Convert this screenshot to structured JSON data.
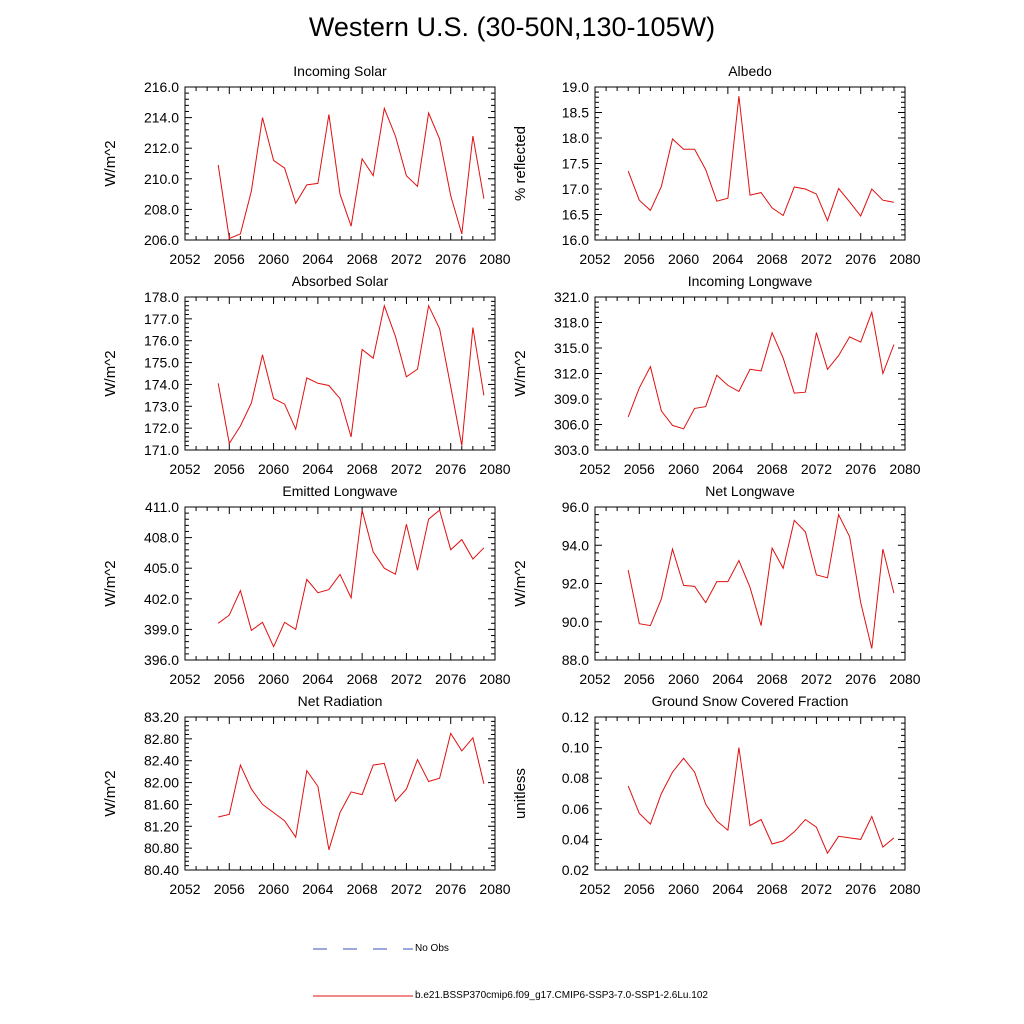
{
  "title": "Western U.S. (30-50N,130-105W)",
  "legend": {
    "entries": [
      {
        "label": "No Obs",
        "color": "#3a4fb8",
        "dashed": true
      },
      {
        "label": "b.e21.BSSP370cmip6.f09_g17.CMIP6-SSP3-7.0-SSP1-2.6Lu.102",
        "color": "#e01010",
        "dashed": false
      }
    ]
  },
  "line_color": "#e01010",
  "chart_data": [
    {
      "type": "line",
      "title": "Incoming Solar",
      "xlabel": "",
      "ylabel": "W/m^2",
      "xlim": [
        2052,
        2080
      ],
      "ylim": [
        206,
        216
      ],
      "grid": false,
      "xticks": [
        "2052",
        "2056",
        "2060",
        "2064",
        "2068",
        "2072",
        "2076",
        "2080"
      ],
      "yticks": [
        "206.0",
        "208.0",
        "210.0",
        "212.0",
        "214.0",
        "216.0"
      ],
      "x": [
        2055,
        2056,
        2057,
        2058,
        2059,
        2060,
        2061,
        2062,
        2063,
        2064,
        2065,
        2066,
        2067,
        2068,
        2069,
        2070,
        2071,
        2072,
        2073,
        2074,
        2075,
        2076,
        2077,
        2078,
        2079
      ],
      "values": [
        210.9,
        206.1,
        206.4,
        209.2,
        214.0,
        211.2,
        210.7,
        208.4,
        209.6,
        209.7,
        214.2,
        209.0,
        206.9,
        211.3,
        210.2,
        214.6,
        212.8,
        210.2,
        209.5,
        214.3,
        212.6,
        208.9,
        206.4,
        212.8,
        208.7
      ]
    },
    {
      "type": "line",
      "title": "Albedo",
      "xlabel": "",
      "ylabel": "% reflected",
      "xlim": [
        2052,
        2080
      ],
      "ylim": [
        16.0,
        19.0
      ],
      "grid": false,
      "xticks": [
        "2052",
        "2056",
        "2060",
        "2064",
        "2068",
        "2072",
        "2076",
        "2080"
      ],
      "yticks": [
        "16.0",
        "16.5",
        "17.0",
        "17.5",
        "18.0",
        "18.5",
        "19.0"
      ],
      "x": [
        2055,
        2056,
        2057,
        2058,
        2059,
        2060,
        2061,
        2062,
        2063,
        2064,
        2065,
        2066,
        2067,
        2068,
        2069,
        2070,
        2071,
        2072,
        2073,
        2074,
        2075,
        2076,
        2077,
        2078,
        2079
      ],
      "values": [
        17.35,
        16.78,
        16.58,
        17.05,
        17.98,
        17.78,
        17.78,
        17.38,
        16.76,
        16.82,
        18.82,
        16.88,
        16.93,
        16.63,
        16.48,
        17.04,
        17.0,
        16.9,
        16.38,
        17.01,
        16.75,
        16.47,
        17.0,
        16.78,
        16.74
      ]
    },
    {
      "type": "line",
      "title": "Absorbed Solar",
      "xlabel": "",
      "ylabel": "W/m^2",
      "xlim": [
        2052,
        2080
      ],
      "ylim": [
        171,
        178
      ],
      "grid": false,
      "xticks": [
        "2052",
        "2056",
        "2060",
        "2064",
        "2068",
        "2072",
        "2076",
        "2080"
      ],
      "yticks": [
        "171.0",
        "172.0",
        "173.0",
        "174.0",
        "175.0",
        "176.0",
        "177.0",
        "178.0"
      ],
      "x": [
        2055,
        2056,
        2057,
        2058,
        2059,
        2060,
        2061,
        2062,
        2063,
        2064,
        2065,
        2066,
        2067,
        2068,
        2069,
        2070,
        2071,
        2072,
        2073,
        2074,
        2075,
        2076,
        2077,
        2078,
        2079
      ],
      "values": [
        174.05,
        171.3,
        172.1,
        173.15,
        175.35,
        173.35,
        173.1,
        171.95,
        174.3,
        174.05,
        173.95,
        173.35,
        171.6,
        175.6,
        175.2,
        177.6,
        176.2,
        174.35,
        174.7,
        177.6,
        176.55,
        173.9,
        171.2,
        176.6,
        173.5
      ]
    },
    {
      "type": "line",
      "title": "Incoming Longwave",
      "xlabel": "",
      "ylabel": "W/m^2",
      "xlim": [
        2052,
        2080
      ],
      "ylim": [
        303,
        321
      ],
      "grid": false,
      "xticks": [
        "2052",
        "2056",
        "2060",
        "2064",
        "2068",
        "2072",
        "2076",
        "2080"
      ],
      "yticks": [
        "303.0",
        "306.0",
        "309.0",
        "312.0",
        "315.0",
        "318.0",
        "321.0"
      ],
      "x": [
        2055,
        2056,
        2057,
        2058,
        2059,
        2060,
        2061,
        2062,
        2063,
        2064,
        2065,
        2066,
        2067,
        2068,
        2069,
        2070,
        2071,
        2072,
        2073,
        2074,
        2075,
        2076,
        2077,
        2078,
        2079
      ],
      "values": [
        306.9,
        310.3,
        312.8,
        307.6,
        305.9,
        305.5,
        307.9,
        308.1,
        311.8,
        310.6,
        309.9,
        312.5,
        312.3,
        316.8,
        313.8,
        309.7,
        309.8,
        316.8,
        312.5,
        314.1,
        316.3,
        315.7,
        319.2,
        312.0,
        315.4
      ]
    },
    {
      "type": "line",
      "title": "Emitted Longwave",
      "xlabel": "",
      "ylabel": "W/m^2",
      "xlim": [
        2052,
        2080
      ],
      "ylim": [
        396,
        411
      ],
      "grid": false,
      "xticks": [
        "2052",
        "2056",
        "2060",
        "2064",
        "2068",
        "2072",
        "2076",
        "2080"
      ],
      "yticks": [
        "396.0",
        "399.0",
        "402.0",
        "405.0",
        "408.0",
        "411.0"
      ],
      "x": [
        2055,
        2056,
        2057,
        2058,
        2059,
        2060,
        2061,
        2062,
        2063,
        2064,
        2065,
        2066,
        2067,
        2068,
        2069,
        2070,
        2071,
        2072,
        2073,
        2074,
        2075,
        2076,
        2077,
        2078,
        2079
      ],
      "values": [
        399.6,
        400.4,
        402.8,
        398.9,
        399.7,
        397.3,
        399.7,
        399.0,
        403.9,
        402.6,
        402.9,
        404.4,
        402.1,
        410.7,
        406.6,
        405.0,
        404.4,
        409.3,
        404.8,
        409.8,
        410.7,
        406.8,
        407.8,
        405.9,
        407.0
      ]
    },
    {
      "type": "line",
      "title": "Net Longwave",
      "xlabel": "",
      "ylabel": "W/m^2",
      "xlim": [
        2052,
        2080
      ],
      "ylim": [
        88,
        96
      ],
      "grid": false,
      "xticks": [
        "2052",
        "2056",
        "2060",
        "2064",
        "2068",
        "2072",
        "2076",
        "2080"
      ],
      "yticks": [
        "88.0",
        "90.0",
        "92.0",
        "94.0",
        "96.0"
      ],
      "x": [
        2055,
        2056,
        2057,
        2058,
        2059,
        2060,
        2061,
        2062,
        2063,
        2064,
        2065,
        2066,
        2067,
        2068,
        2069,
        2070,
        2071,
        2072,
        2073,
        2074,
        2075,
        2076,
        2077,
        2078,
        2079
      ],
      "values": [
        92.7,
        89.9,
        89.8,
        91.2,
        93.8,
        91.9,
        91.85,
        91.0,
        92.1,
        92.1,
        93.2,
        91.8,
        89.8,
        93.85,
        92.8,
        95.3,
        94.7,
        92.45,
        92.3,
        95.6,
        94.45,
        91.0,
        88.6,
        93.8,
        91.5
      ]
    },
    {
      "type": "line",
      "title": "Net Radiation",
      "xlabel": "",
      "ylabel": "W/m^2",
      "xlim": [
        2052,
        2080
      ],
      "ylim": [
        80.4,
        83.2
      ],
      "grid": false,
      "xticks": [
        "2052",
        "2056",
        "2060",
        "2064",
        "2068",
        "2072",
        "2076",
        "2080"
      ],
      "yticks": [
        "80.40",
        "80.80",
        "81.20",
        "81.60",
        "82.00",
        "82.40",
        "82.80",
        "83.20"
      ],
      "x": [
        2055,
        2056,
        2057,
        2058,
        2059,
        2060,
        2061,
        2062,
        2063,
        2064,
        2065,
        2066,
        2067,
        2068,
        2069,
        2070,
        2071,
        2072,
        2073,
        2074,
        2075,
        2076,
        2077,
        2078,
        2079
      ],
      "values": [
        81.37,
        81.42,
        82.32,
        81.88,
        81.6,
        81.45,
        81.3,
        81.0,
        82.22,
        81.93,
        80.77,
        81.45,
        81.83,
        81.78,
        82.32,
        82.35,
        81.66,
        81.88,
        82.42,
        82.02,
        82.08,
        82.9,
        82.58,
        82.82,
        81.98
      ]
    },
    {
      "type": "line",
      "title": "Ground Snow Covered Fraction",
      "xlabel": "",
      "ylabel": "unitless",
      "xlim": [
        2052,
        2080
      ],
      "ylim": [
        0.02,
        0.12
      ],
      "grid": false,
      "xticks": [
        "2052",
        "2056",
        "2060",
        "2064",
        "2068",
        "2072",
        "2076",
        "2080"
      ],
      "yticks": [
        "0.02",
        "0.04",
        "0.06",
        "0.08",
        "0.10",
        "0.12"
      ],
      "x": [
        2055,
        2056,
        2057,
        2058,
        2059,
        2060,
        2061,
        2062,
        2063,
        2064,
        2065,
        2066,
        2067,
        2068,
        2069,
        2070,
        2071,
        2072,
        2073,
        2074,
        2075,
        2076,
        2077,
        2078,
        2079
      ],
      "values": [
        0.075,
        0.057,
        0.05,
        0.07,
        0.084,
        0.093,
        0.084,
        0.063,
        0.052,
        0.046,
        0.1,
        0.049,
        0.053,
        0.037,
        0.039,
        0.045,
        0.053,
        0.048,
        0.031,
        0.042,
        0.041,
        0.04,
        0.055,
        0.035,
        0.041
      ]
    }
  ]
}
